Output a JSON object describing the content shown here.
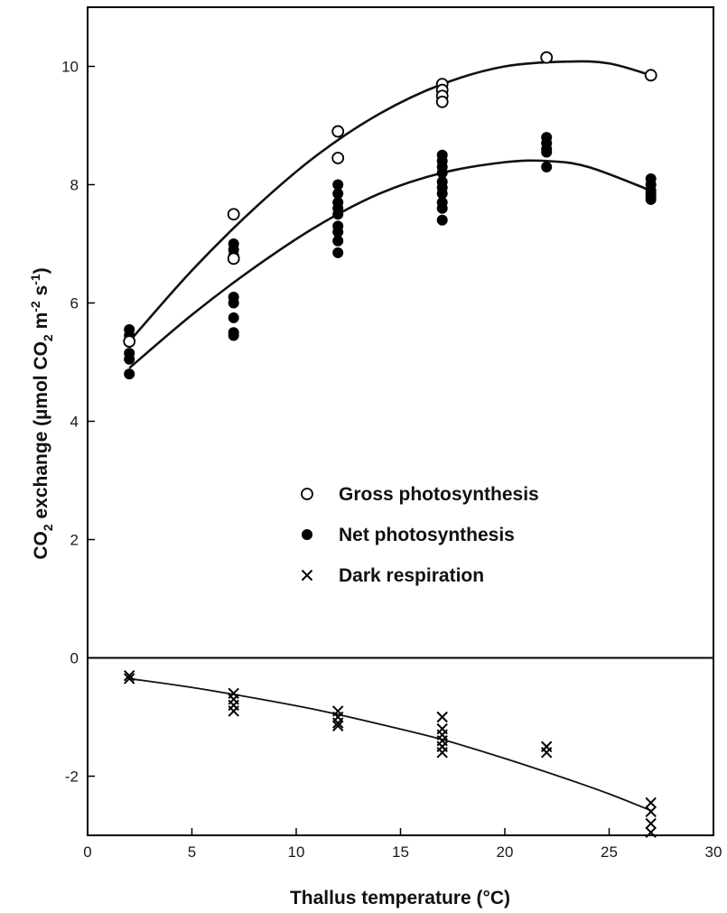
{
  "chart_data": {
    "type": "scatter",
    "xlabel": "Thallus temperature (°C)",
    "ylabel_parts": {
      "pre": "CO",
      "sub2": "2",
      "mid": " exchange (µmol CO",
      "sub2b": "2",
      "mid2": " m",
      "sup1": "-2",
      "mid3": " s",
      "sup2": "-1",
      "post": ")"
    },
    "xlim": [
      0,
      30
    ],
    "ylim": [
      -3,
      11
    ],
    "x_ticks": [
      0,
      5,
      10,
      15,
      20,
      25,
      30
    ],
    "y_ticks": [
      -2,
      0,
      2,
      4,
      6,
      8,
      10
    ],
    "grid": false,
    "legend_position": "center",
    "series": [
      {
        "name": "Gross photosynthesis",
        "marker": "open-circle",
        "points": [
          [
            2,
            5.35
          ],
          [
            7,
            7.5
          ],
          [
            7,
            6.75
          ],
          [
            12,
            8.9
          ],
          [
            12,
            8.45
          ],
          [
            17,
            9.7
          ],
          [
            17,
            9.6
          ],
          [
            17,
            9.5
          ],
          [
            17,
            9.4
          ],
          [
            22,
            10.15
          ],
          [
            27,
            9.85
          ]
        ],
        "fit": [
          [
            2,
            5.35
          ],
          [
            5,
            6.55
          ],
          [
            8,
            7.6
          ],
          [
            11,
            8.5
          ],
          [
            14,
            9.2
          ],
          [
            17,
            9.7
          ],
          [
            20,
            10.0
          ],
          [
            23,
            10.08
          ],
          [
            25,
            10.05
          ],
          [
            27,
            9.85
          ]
        ]
      },
      {
        "name": "Net photosynthesis",
        "marker": "filled-circle",
        "points": [
          [
            2,
            5.55
          ],
          [
            2,
            5.45
          ],
          [
            2,
            5.15
          ],
          [
            2,
            5.05
          ],
          [
            2,
            4.8
          ],
          [
            7,
            7.0
          ],
          [
            7,
            6.9
          ],
          [
            7,
            6.8
          ],
          [
            7,
            6.1
          ],
          [
            7,
            6.0
          ],
          [
            7,
            5.75
          ],
          [
            7,
            5.5
          ],
          [
            7,
            5.45
          ],
          [
            12,
            8.0
          ],
          [
            12,
            7.85
          ],
          [
            12,
            7.7
          ],
          [
            12,
            7.6
          ],
          [
            12,
            7.5
          ],
          [
            12,
            7.3
          ],
          [
            12,
            7.2
          ],
          [
            12,
            7.05
          ],
          [
            12,
            6.85
          ],
          [
            17,
            8.5
          ],
          [
            17,
            8.4
          ],
          [
            17,
            8.3
          ],
          [
            17,
            8.2
          ],
          [
            17,
            8.05
          ],
          [
            17,
            7.95
          ],
          [
            17,
            7.85
          ],
          [
            17,
            7.7
          ],
          [
            17,
            7.6
          ],
          [
            17,
            7.4
          ],
          [
            22,
            8.8
          ],
          [
            22,
            8.7
          ],
          [
            22,
            8.6
          ],
          [
            22,
            8.55
          ],
          [
            22,
            8.3
          ],
          [
            27,
            8.1
          ],
          [
            27,
            8.0
          ],
          [
            27,
            7.9
          ],
          [
            27,
            7.85
          ],
          [
            27,
            7.8
          ],
          [
            27,
            7.75
          ]
        ],
        "fit": [
          [
            2,
            4.9
          ],
          [
            5,
            5.8
          ],
          [
            8,
            6.6
          ],
          [
            11,
            7.3
          ],
          [
            14,
            7.85
          ],
          [
            17,
            8.2
          ],
          [
            20,
            8.38
          ],
          [
            22,
            8.4
          ],
          [
            24,
            8.3
          ],
          [
            27,
            7.9
          ]
        ]
      },
      {
        "name": "Dark respiration",
        "marker": "cross",
        "points": [
          [
            2,
            -0.3
          ],
          [
            2,
            -0.35
          ],
          [
            7,
            -0.6
          ],
          [
            7,
            -0.7
          ],
          [
            7,
            -0.8
          ],
          [
            7,
            -0.9
          ],
          [
            12,
            -0.9
          ],
          [
            12,
            -1.0
          ],
          [
            12,
            -1.1
          ],
          [
            12,
            -1.15
          ],
          [
            17,
            -1.0
          ],
          [
            17,
            -1.2
          ],
          [
            17,
            -1.3
          ],
          [
            17,
            -1.4
          ],
          [
            17,
            -1.5
          ],
          [
            17,
            -1.6
          ],
          [
            22,
            -1.5
          ],
          [
            22,
            -1.6
          ],
          [
            27,
            -2.45
          ],
          [
            27,
            -2.6
          ],
          [
            27,
            -2.8
          ],
          [
            27,
            -2.95
          ]
        ],
        "fit": [
          [
            2,
            -0.35
          ],
          [
            5,
            -0.5
          ],
          [
            8,
            -0.68
          ],
          [
            11,
            -0.88
          ],
          [
            14,
            -1.12
          ],
          [
            17,
            -1.38
          ],
          [
            20,
            -1.7
          ],
          [
            23,
            -2.05
          ],
          [
            25,
            -2.3
          ],
          [
            27,
            -2.58
          ]
        ]
      }
    ]
  }
}
